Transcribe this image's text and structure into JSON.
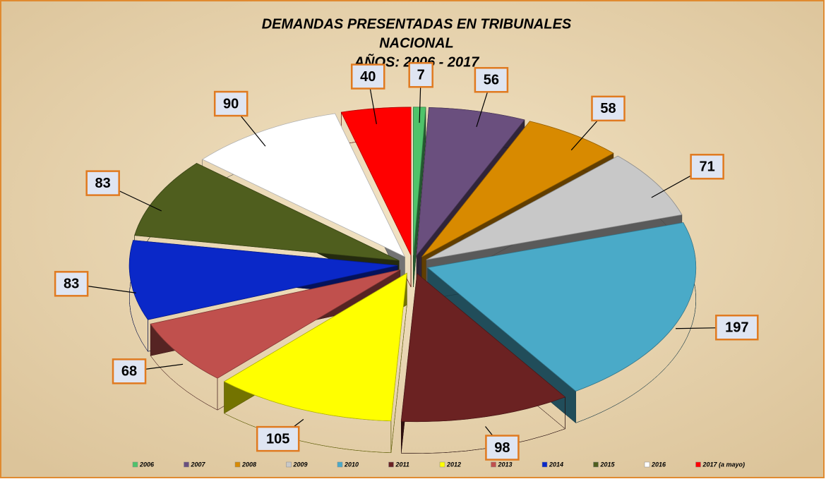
{
  "chart_data": {
    "type": "pie",
    "title": [
      "DEMANDAS PRESENTADAS EN  TRIBUNALES",
      "NACIONAL",
      "AÑOS: 2006 - 2017"
    ],
    "categories": [
      "2006",
      "2007",
      "2008",
      "2009",
      "2010",
      "2011",
      "2012",
      "2013",
      "2014",
      "2015",
      "2016",
      "2017 (a mayo)"
    ],
    "values": [
      7,
      56,
      58,
      71,
      197,
      98,
      105,
      68,
      83,
      83,
      90,
      40
    ],
    "colors": [
      "#4fc36a",
      "#6a4f7e",
      "#d88a00",
      "#c8c8c8",
      "#4aaac8",
      "#6b2222",
      "#ffff00",
      "#c0504d",
      "#0a28c8",
      "#4f5e1e",
      "#ffffff",
      "#ff0000"
    ],
    "legend": "bottom"
  }
}
